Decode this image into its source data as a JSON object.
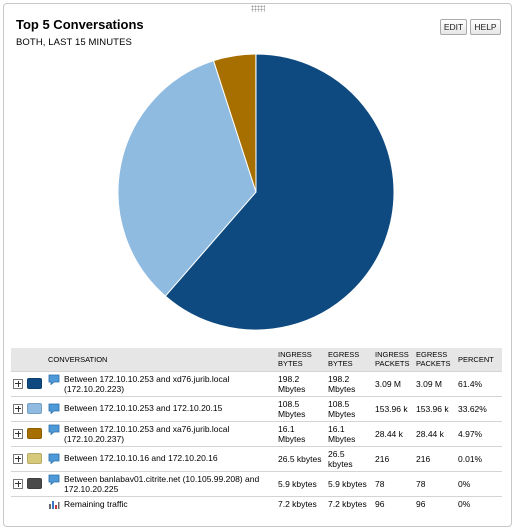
{
  "header": {
    "title": "Top 5 Conversations",
    "subtitle": "BOTH, LAST 15 MINUTES",
    "edit_label": "EDIT",
    "help_label": "HELP"
  },
  "chart_data": {
    "type": "pie",
    "slices": [
      {
        "label": "Between 172.10.10.253 and xd76.jurib.local (172.10.20.223)",
        "value": 61.4,
        "color": "#0e4a80"
      },
      {
        "label": "Between 172.10.10.253 and 172.10.20.15",
        "value": 33.62,
        "color": "#8fbbe1"
      },
      {
        "label": "Between 172.10.10.253 and xa76.jurib.local (172.10.20.237)",
        "value": 4.97,
        "color": "#a66f00"
      },
      {
        "label": "Between 172.10.10.16 and 172.10.20.16",
        "value": 0.01,
        "color": "#d7c97a"
      },
      {
        "label": "Between banlabav01.citrite.net (10.105.99.208) and 172.10.20.225",
        "value": 0,
        "color": "#4a4a4a"
      }
    ]
  },
  "table": {
    "headers": {
      "conversation": "CONVERSATION",
      "ingress_bytes": "INGRESS BYTES",
      "egress_bytes": "EGRESS BYTES",
      "ingress_packets": "INGRESS PACKETS",
      "egress_packets": "EGRESS PACKETS",
      "percent": "PERCENT"
    },
    "rows": [
      {
        "color": "#0e4a80",
        "conversation": "Between 172.10.10.253 and xd76.jurib.local (172.10.20.223)",
        "ingress_bytes": "198.2 Mbytes",
        "egress_bytes": "198.2 Mbytes",
        "ingress_packets": "3.09 M",
        "egress_packets": "3.09 M",
        "percent": "61.4%"
      },
      {
        "color": "#8fbbe1",
        "conversation": "Between 172.10.10.253 and 172.10.20.15",
        "ingress_bytes": "108.5 Mbytes",
        "egress_bytes": "108.5 Mbytes",
        "ingress_packets": "153.96 k",
        "egress_packets": "153.96 k",
        "percent": "33.62%"
      },
      {
        "color": "#a66f00",
        "conversation": "Between 172.10.10.253 and xa76.jurib.local (172.10.20.237)",
        "ingress_bytes": "16.1 Mbytes",
        "egress_bytes": "16.1 Mbytes",
        "ingress_packets": "28.44 k",
        "egress_packets": "28.44 k",
        "percent": "4.97%"
      },
      {
        "color": "#d7c97a",
        "conversation": "Between 172.10.10.16 and 172.10.20.16",
        "ingress_bytes": "26.5 kbytes",
        "egress_bytes": "26.5 kbytes",
        "ingress_packets": "216",
        "egress_packets": "216",
        "percent": "0.01%"
      },
      {
        "color": "#4a4a4a",
        "conversation": "Between banlabav01.citrite.net (10.105.99.208) and 172.10.20.225",
        "ingress_bytes": "5.9 kbytes",
        "egress_bytes": "5.9 kbytes",
        "ingress_packets": "78",
        "egress_packets": "78",
        "percent": "0%"
      }
    ],
    "remaining": {
      "label": "Remaining traffic",
      "ingress_bytes": "7.2 kbytes",
      "egress_bytes": "7.2 kbytes",
      "ingress_packets": "96",
      "egress_packets": "96",
      "percent": "0%"
    }
  }
}
